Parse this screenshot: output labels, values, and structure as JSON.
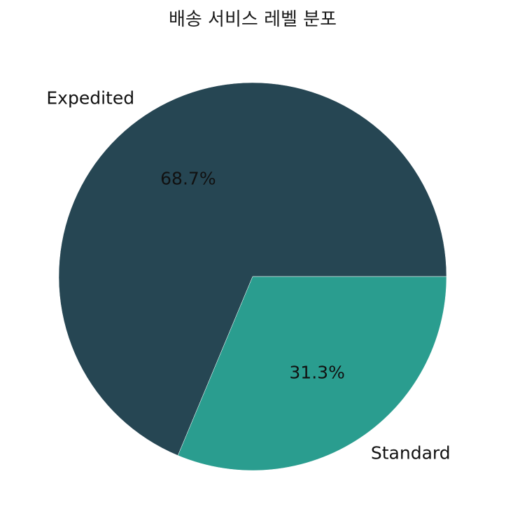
{
  "chart_data": {
    "type": "pie",
    "title": "배송 서비스 레벨 분포",
    "categories": [
      "Expedited",
      "Standard"
    ],
    "values": [
      68.7,
      31.3
    ],
    "value_labels": [
      "68.7%",
      "31.3%"
    ],
    "colors": [
      "#264653",
      "#2a9d8f"
    ],
    "start_angle_deg": 0,
    "direction": "counterclockwise",
    "legend": "none"
  }
}
